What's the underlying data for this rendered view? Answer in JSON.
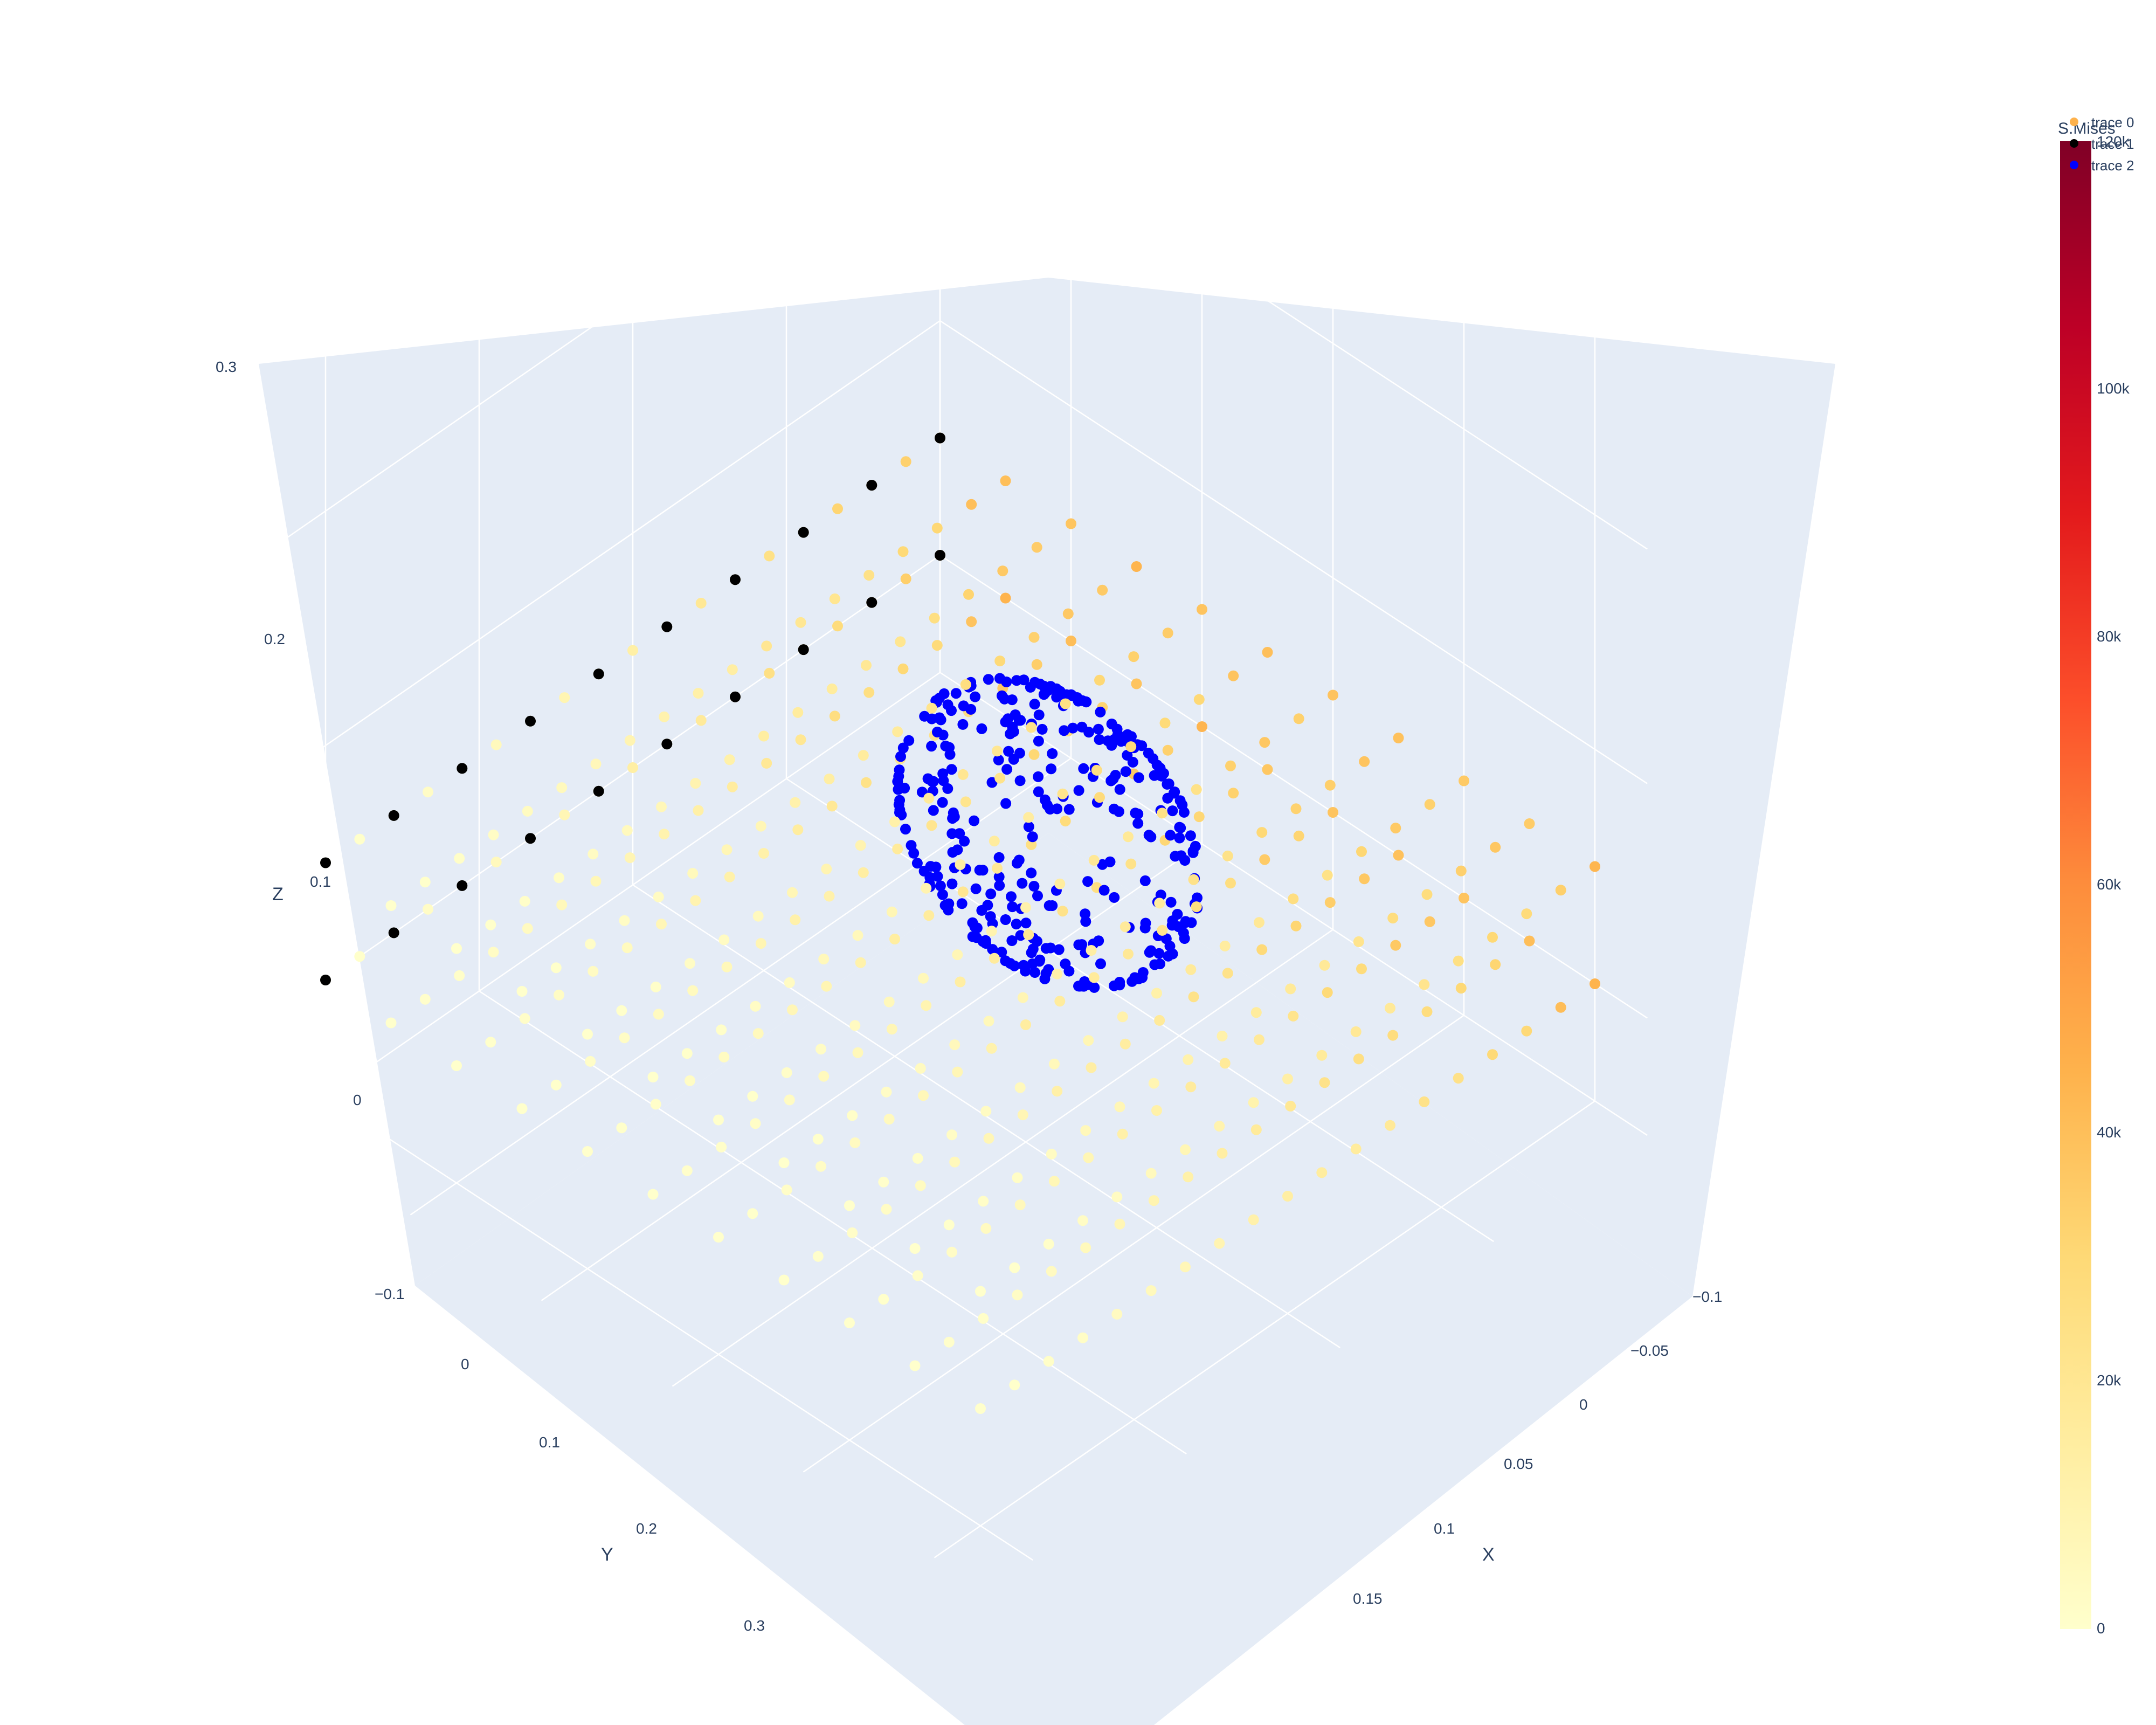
{
  "chart_data": {
    "type": "scatter",
    "projection": "3d",
    "axes": {
      "x": {
        "label": "X",
        "ticks": [
          "−0.1",
          "−0.05",
          "0",
          "0.05",
          "0.1",
          "0.15"
        ],
        "range": [
          -0.1,
          0.17
        ]
      },
      "y": {
        "label": "Y",
        "ticks": [
          "−0.1",
          "0",
          "0.1",
          "0.2",
          "0.3"
        ],
        "range": [
          -0.1,
          0.33
        ]
      },
      "z": {
        "label": "Z",
        "ticks": [
          "0",
          "0.1",
          "0.2",
          "0.3"
        ],
        "range": [
          -0.05,
          0.3
        ]
      }
    },
    "grid": true,
    "background": "#e5ecf6",
    "colorbar": {
      "title": "S.Mises",
      "ticks": [
        "0",
        "20k",
        "40k",
        "60k",
        "80k",
        "100k",
        "120k"
      ],
      "range": [
        0,
        120000
      ],
      "colorscale": [
        "#ffffcc",
        "#ffeda0",
        "#fed976",
        "#feb24c",
        "#fd8d3c",
        "#fc4e2a",
        "#e31a1c",
        "#bd0026",
        "#800026"
      ]
    },
    "legend": {
      "placement": "top-right",
      "entries": [
        {
          "name": "trace 0",
          "color": "#feb24c"
        },
        {
          "name": "trace 1",
          "color": "#000000"
        },
        {
          "name": "trace 2",
          "color": "#0000ff"
        }
      ]
    },
    "series": [
      {
        "name": "trace 0",
        "marker": "colorscale",
        "description_values": "Beam mesh nodes spanning x from -0.1 to 0.15, y from -0.1 to 0.3, z from 0 to 0.05; stress decreasing from about 45k at the fixed end to near 0 at the free end",
        "x_range": [
          -0.1,
          0.15
        ],
        "y_range": [
          -0.1,
          0.3
        ],
        "z_range": [
          0.0,
          0.05
        ],
        "stress_range": [
          0,
          45000
        ]
      },
      {
        "name": "trace 1",
        "marker_color": "#000000",
        "x_value": -0.1,
        "y_range": [
          -0.1,
          0.3
        ],
        "z_range": [
          0.0,
          0.05
        ]
      },
      {
        "name": "trace 2",
        "marker_color": "#0000ff",
        "center": [
          0.0,
          0.0,
          0.0
        ],
        "radius": 0.05
      }
    ]
  }
}
